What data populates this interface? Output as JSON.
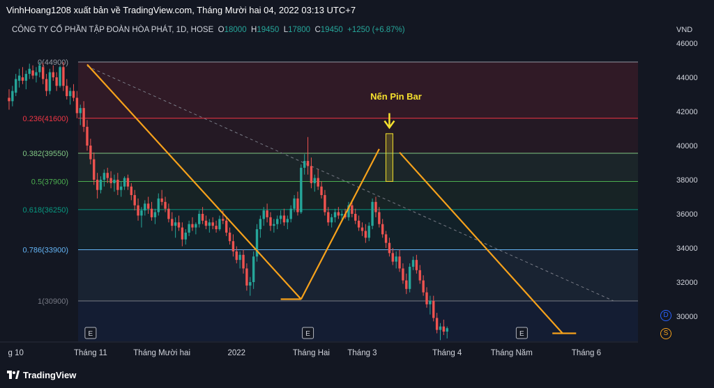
{
  "header": {
    "title": "VinhHoang1208 xuất bản về TradingView.com, Tháng Mười hai 04, 2022 03:13 UTC+7"
  },
  "legend": {
    "symbol": "CÔNG TY CỔ PHẦN TẬP ĐOÀN HÒA PHÁT, 1D, HOSE",
    "o_label": "O",
    "o_value": "18000",
    "h_label": "H",
    "h_value": "19450",
    "l_label": "L",
    "l_value": "17800",
    "c_label": "C",
    "c_value": "19450",
    "change": "+1250 (+6.87%)"
  },
  "axis": {
    "unit": "VND"
  },
  "annotation": {
    "text": "Nến Pin Bar"
  },
  "badges": {
    "d": "D",
    "s": "S"
  },
  "footer": {
    "brand": "TradingView"
  },
  "colors": {
    "up": "#26a69a",
    "down": "#ef5350",
    "orange": "#f7a21b",
    "yellow": "#f5e12e"
  },
  "chart_data": {
    "type": "candlestick",
    "title": "",
    "ylim": [
      28500,
      46400
    ],
    "y_ticks": [
      30000,
      32000,
      34000,
      36000,
      38000,
      40000,
      42000,
      44000,
      46000
    ],
    "y_tick_labels": [
      "30000",
      "32000",
      "34000",
      "36000",
      "38000",
      "40000",
      "42000",
      "44000",
      "46000"
    ],
    "x_ticks": [
      {
        "label": "g 10",
        "x": 2
      },
      {
        "label": "Tháng 11",
        "x": 24
      },
      {
        "label": "Tháng Mười hai",
        "x": 45
      },
      {
        "label": "2022",
        "x": 67
      },
      {
        "label": "Tháng Hai",
        "x": 89
      },
      {
        "label": "Tháng 3",
        "x": 104
      },
      {
        "label": "Tháng 4",
        "x": 129
      },
      {
        "label": "Tháng Năm",
        "x": 148
      },
      {
        "label": "Tháng 6",
        "x": 170
      }
    ],
    "fib_levels": [
      {
        "label": "0(44900)",
        "value": 44900,
        "color": "#9598a1"
      },
      {
        "label": "0.236(41600)",
        "value": 41600,
        "color": "#f23645"
      },
      {
        "label": "0.382(39550)",
        "value": 39550,
        "color": "#81c784"
      },
      {
        "label": "0.5(37900)",
        "value": 37900,
        "color": "#4caf50"
      },
      {
        "label": "0.618(36250)",
        "value": 36250,
        "color": "#089981"
      },
      {
        "label": "0.786(33900)",
        "value": 33900,
        "color": "#64b5f6"
      },
      {
        "label": "1(30900)",
        "value": 30900,
        "color": "#787b86"
      }
    ],
    "earnings_marks": [
      {
        "label": "E",
        "x": 24
      },
      {
        "label": "E",
        "x": 88
      },
      {
        "label": "E",
        "x": 151
      }
    ],
    "orange_lines": [
      {
        "from": [
          23,
          44750
        ],
        "to": [
          86,
          31000
        ]
      },
      {
        "from": [
          80,
          31000
        ],
        "to": [
          86,
          31000
        ]
      },
      {
        "from": [
          86,
          31000
        ],
        "to": [
          109,
          39800
        ]
      },
      {
        "from": [
          115,
          39600
        ],
        "to": [
          163,
          29000
        ]
      },
      {
        "from": [
          160,
          29000
        ],
        "to": [
          167,
          29000
        ]
      }
    ],
    "dashed_trendline": {
      "from": [
        23,
        44650
      ],
      "to": [
        178,
        30900
      ]
    },
    "pin_bar_x": 112,
    "candles": [
      [
        42800,
        43300,
        42100,
        42600
      ],
      [
        42600,
        43500,
        42300,
        43200
      ],
      [
        43100,
        44200,
        42900,
        43900
      ],
      [
        43800,
        44500,
        43400,
        44100
      ],
      [
        44000,
        44600,
        43600,
        43800
      ],
      [
        43800,
        44400,
        43300,
        44200
      ],
      [
        44200,
        44800,
        43900,
        44500
      ],
      [
        44400,
        44700,
        43900,
        44100
      ],
      [
        44100,
        44600,
        43700,
        44300
      ],
      [
        44300,
        44900,
        44000,
        44700
      ],
      [
        44600,
        44850,
        43600,
        43900
      ],
      [
        43900,
        44200,
        42900,
        43200
      ],
      [
        43200,
        44500,
        43000,
        44300
      ],
      [
        44300,
        44700,
        43800,
        44000
      ],
      [
        44000,
        44300,
        43200,
        43500
      ],
      [
        43500,
        44700,
        43400,
        44600
      ],
      [
        44600,
        44900,
        43200,
        43500
      ],
      [
        43500,
        43900,
        42700,
        42900
      ],
      [
        42900,
        43400,
        42400,
        43200
      ],
      [
        43200,
        43600,
        42600,
        42800
      ],
      [
        42800,
        43200,
        41600,
        41900
      ],
      [
        41900,
        42400,
        41200,
        42200
      ],
      [
        42200,
        42600,
        40800,
        41100
      ],
      [
        41100,
        41500,
        39700,
        40000
      ],
      [
        40000,
        40400,
        38900,
        39200
      ],
      [
        39200,
        39600,
        37700,
        38000
      ],
      [
        38000,
        38400,
        36900,
        37400
      ],
      [
        37400,
        38200,
        37200,
        38000
      ],
      [
        38000,
        38600,
        37600,
        38400
      ],
      [
        38400,
        38700,
        37800,
        38100
      ],
      [
        38100,
        38500,
        37500,
        37800
      ],
      [
        37800,
        38300,
        37300,
        38000
      ],
      [
        38000,
        38400,
        37100,
        37400
      ],
      [
        37400,
        37900,
        37000,
        37600
      ],
      [
        37600,
        38200,
        37400,
        38100
      ],
      [
        38100,
        38300,
        37400,
        37600
      ],
      [
        37600,
        37800,
        36800,
        37100
      ],
      [
        37100,
        37400,
        36200,
        36500
      ],
      [
        36500,
        36900,
        35600,
        35900
      ],
      [
        35900,
        36400,
        35200,
        36200
      ],
      [
        36200,
        36800,
        35900,
        36600
      ],
      [
        36600,
        37000,
        36000,
        36300
      ],
      [
        36300,
        36700,
        35600,
        35800
      ],
      [
        35800,
        36300,
        35400,
        36100
      ],
      [
        36100,
        37200,
        35900,
        36900
      ],
      [
        36900,
        37400,
        36500,
        36700
      ],
      [
        36700,
        37000,
        36100,
        36300
      ],
      [
        36300,
        36600,
        35500,
        35700
      ],
      [
        35700,
        36100,
        35000,
        35300
      ],
      [
        35300,
        35800,
        34600,
        35500
      ],
      [
        35500,
        35900,
        35000,
        35200
      ],
      [
        35200,
        35500,
        34100,
        34500
      ],
      [
        34500,
        35100,
        34200,
        34900
      ],
      [
        34900,
        35600,
        34700,
        35400
      ],
      [
        35400,
        35800,
        35000,
        35200
      ],
      [
        35200,
        35500,
        34800,
        35400
      ],
      [
        35400,
        36200,
        35200,
        36000
      ],
      [
        36000,
        36400,
        35400,
        35600
      ],
      [
        35600,
        35900,
        35100,
        35300
      ],
      [
        35300,
        35700,
        34900,
        35500
      ],
      [
        35500,
        35800,
        35100,
        35300
      ],
      [
        35300,
        35600,
        34900,
        35100
      ],
      [
        35100,
        35900,
        35000,
        35700
      ],
      [
        35700,
        36200,
        35400,
        35600
      ],
      [
        35600,
        35800,
        34700,
        34900
      ],
      [
        34900,
        35200,
        34200,
        34400
      ],
      [
        34400,
        34800,
        33500,
        33800
      ],
      [
        33800,
        34100,
        33100,
        33300
      ],
      [
        33300,
        33800,
        32800,
        33600
      ],
      [
        33600,
        33900,
        32500,
        32800
      ],
      [
        32800,
        33100,
        31500,
        31800
      ],
      [
        31800,
        32300,
        31200,
        32000
      ],
      [
        32000,
        33800,
        31600,
        33500
      ],
      [
        33500,
        35400,
        33200,
        35100
      ],
      [
        35100,
        35900,
        34600,
        35700
      ],
      [
        35700,
        36400,
        35300,
        36200
      ],
      [
        36200,
        36600,
        35500,
        35800
      ],
      [
        35800,
        36100,
        35000,
        35300
      ],
      [
        35300,
        35700,
        34900,
        35400
      ],
      [
        35400,
        35900,
        35100,
        35700
      ],
      [
        35700,
        36200,
        35400,
        35900
      ],
      [
        35900,
        36300,
        35300,
        35500
      ],
      [
        35500,
        35900,
        35100,
        35700
      ],
      [
        35700,
        36500,
        35500,
        36300
      ],
      [
        36300,
        37100,
        36100,
        36900
      ],
      [
        36900,
        37300,
        35900,
        36100
      ],
      [
        36100,
        38900,
        36000,
        38700
      ],
      [
        38700,
        39500,
        38300,
        39100
      ],
      [
        39100,
        40500,
        38300,
        38800
      ],
      [
        38800,
        39300,
        37500,
        37800
      ],
      [
        37800,
        38300,
        37300,
        38100
      ],
      [
        38100,
        38600,
        37400,
        37600
      ],
      [
        37600,
        37900,
        36900,
        37100
      ],
      [
        37100,
        37400,
        35900,
        36100
      ],
      [
        36100,
        36400,
        35300,
        35500
      ],
      [
        35500,
        36000,
        35200,
        35800
      ],
      [
        35800,
        36300,
        35500,
        36100
      ],
      [
        36100,
        36400,
        35700,
        35900
      ],
      [
        35900,
        36200,
        35600,
        36000
      ],
      [
        36000,
        36300,
        35700,
        35800
      ],
      [
        35800,
        36700,
        35600,
        36500
      ],
      [
        36500,
        36800,
        35800,
        36000
      ],
      [
        36000,
        36300,
        35400,
        35600
      ],
      [
        35600,
        35900,
        35000,
        35200
      ],
      [
        35200,
        35500,
        34700,
        35000
      ],
      [
        35000,
        35400,
        34300,
        34600
      ],
      [
        34600,
        35500,
        34400,
        35300
      ],
      [
        35300,
        36900,
        35100,
        36700
      ],
      [
        36700,
        37000,
        35800,
        36100
      ],
      [
        36100,
        36400,
        35200,
        35400
      ],
      [
        35400,
        35700,
        34600,
        34800
      ],
      [
        34800,
        35000,
        34000,
        34300
      ],
      [
        34300,
        34600,
        33500,
        33700
      ],
      [
        33700,
        34000,
        33000,
        33200
      ],
      [
        33200,
        33800,
        32800,
        33500
      ],
      [
        33500,
        33900,
        32600,
        32800
      ],
      [
        32800,
        33100,
        31900,
        32100
      ],
      [
        32100,
        32500,
        31300,
        31600
      ],
      [
        31600,
        33100,
        31400,
        32900
      ],
      [
        32900,
        33500,
        32700,
        33300
      ],
      [
        33300,
        33600,
        32500,
        32700
      ],
      [
        32700,
        33000,
        31900,
        32100
      ],
      [
        32100,
        32400,
        31200,
        31400
      ],
      [
        31400,
        31700,
        30500,
        30700
      ],
      [
        30700,
        31200,
        30100,
        30900
      ],
      [
        30900,
        31200,
        29700,
        29900
      ],
      [
        29900,
        30200,
        29000,
        29200
      ],
      [
        29200,
        29600,
        28600,
        29400
      ],
      [
        29400,
        29800,
        28900,
        29100
      ],
      [
        29100,
        29400,
        28700,
        29300
      ]
    ]
  }
}
